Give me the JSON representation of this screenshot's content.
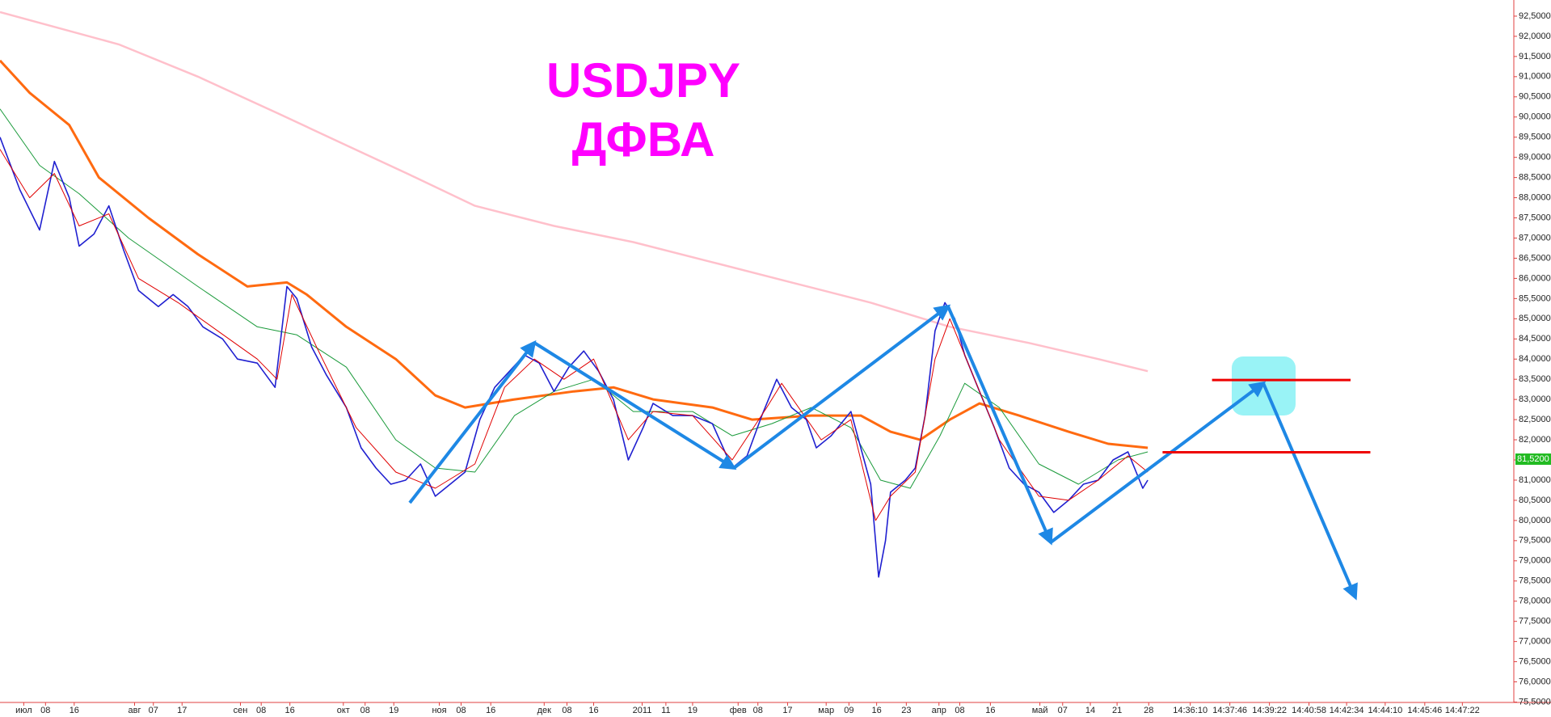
{
  "chart_data": {
    "type": "line",
    "title": "USDJPY",
    "subtitle": "ДФВА",
    "xlim": [
      0,
      1530
    ],
    "ylim": [
      75.55,
      92.9
    ],
    "xticks": [
      {
        "value": 24,
        "label": "июл"
      },
      {
        "value": 46,
        "label": "08"
      },
      {
        "value": 75,
        "label": "16"
      },
      {
        "value": 136,
        "label": "авг"
      },
      {
        "value": 155,
        "label": "07"
      },
      {
        "value": 184,
        "label": "17"
      },
      {
        "value": 243,
        "label": "сен"
      },
      {
        "value": 264,
        "label": "08"
      },
      {
        "value": 293,
        "label": "16"
      },
      {
        "value": 347,
        "label": "окт"
      },
      {
        "value": 369,
        "label": "08"
      },
      {
        "value": 398,
        "label": "19"
      },
      {
        "value": 444,
        "label": "ноя"
      },
      {
        "value": 466,
        "label": "08"
      },
      {
        "value": 496,
        "label": "16"
      },
      {
        "value": 550,
        "label": "дек"
      },
      {
        "value": 573,
        "label": "08"
      },
      {
        "value": 600,
        "label": "16"
      },
      {
        "value": 649,
        "label": "2011"
      },
      {
        "value": 673,
        "label": "11"
      },
      {
        "value": 700,
        "label": "19"
      },
      {
        "value": 746,
        "label": "фев"
      },
      {
        "value": 766,
        "label": "08"
      },
      {
        "value": 796,
        "label": "17"
      },
      {
        "value": 835,
        "label": "мар"
      },
      {
        "value": 858,
        "label": "09"
      },
      {
        "value": 886,
        "label": "16"
      },
      {
        "value": 916,
        "label": "23"
      },
      {
        "value": 949,
        "label": "апр"
      },
      {
        "value": 970,
        "label": "08"
      },
      {
        "value": 1001,
        "label": "16"
      },
      {
        "value": 1051,
        "label": "май"
      },
      {
        "value": 1074,
        "label": "07"
      },
      {
        "value": 1102,
        "label": "14"
      },
      {
        "value": 1129,
        "label": "21"
      },
      {
        "value": 1161,
        "label": "28"
      },
      {
        "value": 1203,
        "label": "14:36:10"
      },
      {
        "value": 1243,
        "label": "14:37:46"
      },
      {
        "value": 1283,
        "label": "14:39:22"
      },
      {
        "value": 1323,
        "label": "14:40:58"
      },
      {
        "value": 1361,
        "label": "14:42:34"
      },
      {
        "value": 1400,
        "label": "14:44:10"
      },
      {
        "value": 1440,
        "label": "14:45:46"
      },
      {
        "value": 1478,
        "label": "14:47:22"
      }
    ],
    "yticks": [
      {
        "value": 75.5,
        "label": "75,5000"
      },
      {
        "value": 76,
        "label": "76,0000"
      },
      {
        "value": 76.5,
        "label": "76,5000"
      },
      {
        "value": 77,
        "label": "77,0000"
      },
      {
        "value": 77.5,
        "label": "77,5000"
      },
      {
        "value": 78,
        "label": "78,0000"
      },
      {
        "value": 78.5,
        "label": "78,5000"
      },
      {
        "value": 79,
        "label": "79,0000"
      },
      {
        "value": 79.5,
        "label": "79,5000"
      },
      {
        "value": 80,
        "label": "80,0000"
      },
      {
        "value": 80.5,
        "label": "80,5000"
      },
      {
        "value": 81,
        "label": "81,0000"
      },
      {
        "value": 81.5,
        "label": "81,5000"
      },
      {
        "value": 82,
        "label": "82,0000"
      },
      {
        "value": 82.5,
        "label": "82,5000"
      },
      {
        "value": 83,
        "label": "83,0000"
      },
      {
        "value": 83.5,
        "label": "83,5000"
      },
      {
        "value": 84,
        "label": "84,0000"
      },
      {
        "value": 84.5,
        "label": "84,5000"
      },
      {
        "value": 85,
        "label": "85,0000"
      },
      {
        "value": 85.5,
        "label": "85,5000"
      },
      {
        "value": 86,
        "label": "86,0000"
      },
      {
        "value": 86.5,
        "label": "86,5000"
      },
      {
        "value": 87,
        "label": "87,0000"
      },
      {
        "value": 87.5,
        "label": "87,5000"
      },
      {
        "value": 88,
        "label": "88,0000"
      },
      {
        "value": 88.5,
        "label": "88,5000"
      },
      {
        "value": 89,
        "label": "89,0000"
      },
      {
        "value": 89.5,
        "label": "89,5000"
      },
      {
        "value": 90,
        "label": "90,0000"
      },
      {
        "value": 90.5,
        "label": "90,5000"
      },
      {
        "value": 91,
        "label": "91,0000"
      },
      {
        "value": 91.5,
        "label": "91,5000"
      },
      {
        "value": 92,
        "label": "92,0000"
      },
      {
        "value": 92.5,
        "label": "92,5000"
      }
    ],
    "series": [
      {
        "color": "#ffc0cb",
        "width": 2.5,
        "x": [
          0,
          60,
          120,
          200,
          280,
          350,
          420,
          480,
          560,
          640,
          720,
          800,
          880,
          960,
          1040,
          1110,
          1160
        ],
        "values": [
          92.6,
          92.2,
          91.8,
          91.0,
          90.1,
          89.3,
          88.5,
          87.8,
          87.3,
          86.9,
          86.4,
          85.9,
          85.4,
          84.8,
          84.4,
          84.0,
          83.7
        ]
      },
      {
        "color": "#ff6a10",
        "width": 3,
        "x": [
          0,
          30,
          70,
          100,
          150,
          200,
          250,
          290,
          310,
          350,
          400,
          440,
          470,
          520,
          580,
          620,
          660,
          720,
          760,
          820,
          870,
          900,
          930,
          960,
          990,
          1030,
          1080,
          1120,
          1160
        ],
        "values": [
          91.4,
          90.6,
          89.8,
          88.5,
          87.5,
          86.6,
          85.8,
          85.9,
          85.6,
          84.8,
          84.0,
          83.1,
          82.8,
          83.0,
          83.2,
          83.3,
          83.0,
          82.8,
          82.5,
          82.6,
          82.6,
          82.2,
          82.0,
          82.5,
          82.9,
          82.6,
          82.2,
          81.9,
          81.8
        ]
      },
      {
        "color": "#1a9a3a",
        "width": 1,
        "x": [
          0,
          40,
          80,
          130,
          200,
          260,
          300,
          350,
          400,
          440,
          480,
          520,
          560,
          600,
          640,
          700,
          740,
          780,
          820,
          860,
          890,
          920,
          950,
          975,
          1010,
          1050,
          1090,
          1130,
          1160
        ],
        "values": [
          90.2,
          88.8,
          88.1,
          87.0,
          85.8,
          84.8,
          84.6,
          83.8,
          82.0,
          81.3,
          81.2,
          82.6,
          83.2,
          83.5,
          82.7,
          82.7,
          82.1,
          82.4,
          82.8,
          82.3,
          81.0,
          80.8,
          82.1,
          83.4,
          82.8,
          81.4,
          80.9,
          81.5,
          81.7
        ]
      },
      {
        "color": "#2020d0",
        "width": 1.6,
        "x": [
          0,
          20,
          40,
          55,
          70,
          80,
          95,
          110,
          125,
          140,
          160,
          175,
          190,
          205,
          225,
          240,
          260,
          278,
          290,
          300,
          315,
          330,
          350,
          365,
          380,
          395,
          410,
          425,
          440,
          455,
          470,
          485,
          500,
          515,
          530,
          545,
          560,
          575,
          590,
          605,
          620,
          635,
          650,
          660,
          680,
          700,
          720,
          740,
          755,
          770,
          785,
          800,
          815,
          825,
          840,
          860,
          870,
          880,
          888,
          895,
          900,
          915,
          925,
          935,
          945,
          955,
          965,
          975,
          990,
          1005,
          1020,
          1035,
          1050,
          1065,
          1080,
          1095,
          1110,
          1125,
          1140,
          1155,
          1160
        ],
        "values": [
          89.5,
          88.2,
          87.2,
          88.9,
          88.0,
          86.8,
          87.1,
          87.8,
          86.7,
          85.7,
          85.3,
          85.6,
          85.3,
          84.8,
          84.5,
          84.0,
          83.9,
          83.3,
          85.8,
          85.5,
          84.3,
          83.6,
          82.8,
          81.8,
          81.3,
          80.9,
          81.0,
          81.4,
          80.6,
          80.9,
          81.2,
          82.5,
          83.3,
          83.7,
          84.1,
          83.9,
          83.2,
          83.8,
          84.2,
          83.7,
          83.0,
          81.5,
          82.3,
          82.9,
          82.6,
          82.6,
          82.4,
          81.3,
          81.6,
          82.6,
          83.5,
          82.8,
          82.5,
          81.8,
          82.1,
          82.7,
          81.8,
          80.9,
          78.6,
          79.5,
          80.7,
          81.0,
          81.3,
          82.6,
          84.7,
          85.4,
          85.0,
          84.1,
          83.2,
          82.3,
          81.3,
          80.9,
          80.7,
          80.2,
          80.5,
          80.9,
          81.0,
          81.5,
          81.7,
          80.8,
          81.0
        ]
      },
      {
        "color": "#e00000",
        "width": 1,
        "x": [
          0,
          30,
          55,
          80,
          110,
          140,
          180,
          220,
          260,
          280,
          295,
          320,
          360,
          400,
          440,
          480,
          510,
          540,
          570,
          600,
          635,
          660,
          700,
          740,
          775,
          790,
          830,
          860,
          885,
          900,
          925,
          945,
          960,
          980,
          1010,
          1050,
          1080,
          1110,
          1140,
          1160
        ],
        "values": [
          89.2,
          88.0,
          88.6,
          87.3,
          87.6,
          86.0,
          85.4,
          84.7,
          84.0,
          83.5,
          85.6,
          84.3,
          82.3,
          81.2,
          80.8,
          81.4,
          83.3,
          84.0,
          83.5,
          84.0,
          82.0,
          82.7,
          82.6,
          81.5,
          82.8,
          83.4,
          82.0,
          82.5,
          80.0,
          80.6,
          81.2,
          84.0,
          85.0,
          83.8,
          82.0,
          80.6,
          80.5,
          81.0,
          81.6,
          81.2
        ]
      }
    ],
    "levels": [
      {
        "value": 83.48,
        "x": [
          1225,
          1365
        ],
        "color": "#ee0000"
      },
      {
        "value": 81.69,
        "x": [
          1175,
          1385
        ],
        "color": "#ee0000"
      }
    ],
    "price_marker": {
      "value": 81.52,
      "label": "81,5200",
      "color": "#22bb22"
    }
  }
}
